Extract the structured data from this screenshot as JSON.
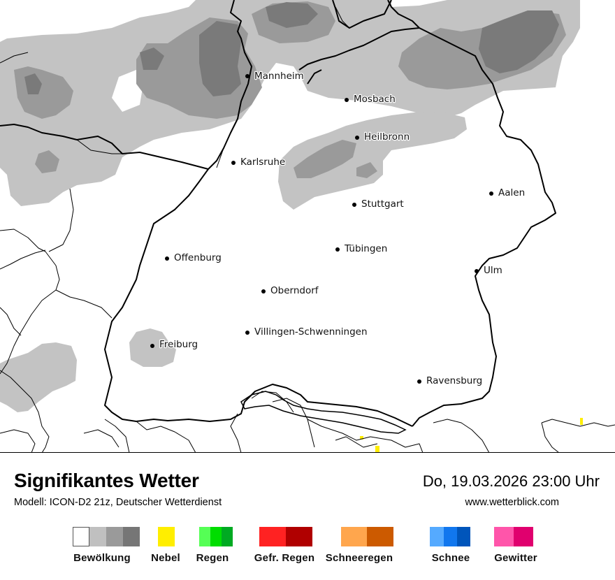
{
  "header": {
    "title": "Signifikantes Wetter",
    "model": "Modell: ICON-D2 21z, Deutscher Wetterdienst",
    "datetime": "Do, 19.03.2026 23:00 Uhr",
    "website": "www.wetterblick.com"
  },
  "map": {
    "cities": [
      {
        "name": "Mannheim"
      },
      {
        "name": "Mosbach"
      },
      {
        "name": "Heilbronn"
      },
      {
        "name": "Karlsruhe"
      },
      {
        "name": "Aalen"
      },
      {
        "name": "Stuttgart"
      },
      {
        "name": "Tübingen"
      },
      {
        "name": "Offenburg"
      },
      {
        "name": "Ulm"
      },
      {
        "name": "Oberndorf"
      },
      {
        "name": "Villingen-Schwenningen"
      },
      {
        "name": "Freiburg"
      },
      {
        "name": "Ravensburg"
      }
    ]
  },
  "legend": [
    {
      "label": "Bewölkung",
      "colors": [
        "#ffffff",
        "#c0c0c0",
        "#9a9a9a",
        "#767676"
      ]
    },
    {
      "label": "Nebel",
      "colors": [
        "#ffee00"
      ]
    },
    {
      "label": "Regen",
      "colors": [
        "#55ff55",
        "#00dd00",
        "#00aa22"
      ]
    },
    {
      "label": "Gefr. Regen",
      "colors": [
        "#ff2222",
        "#b00000"
      ]
    },
    {
      "label": "Schneeregen",
      "colors": [
        "#ffa64d",
        "#cc5a00"
      ]
    },
    {
      "label": "Schnee",
      "colors": [
        "#55aaff",
        "#1177ee",
        "#0055bb"
      ]
    },
    {
      "label": "Gewitter",
      "colors": [
        "#ff55aa",
        "#e0006e"
      ]
    }
  ]
}
